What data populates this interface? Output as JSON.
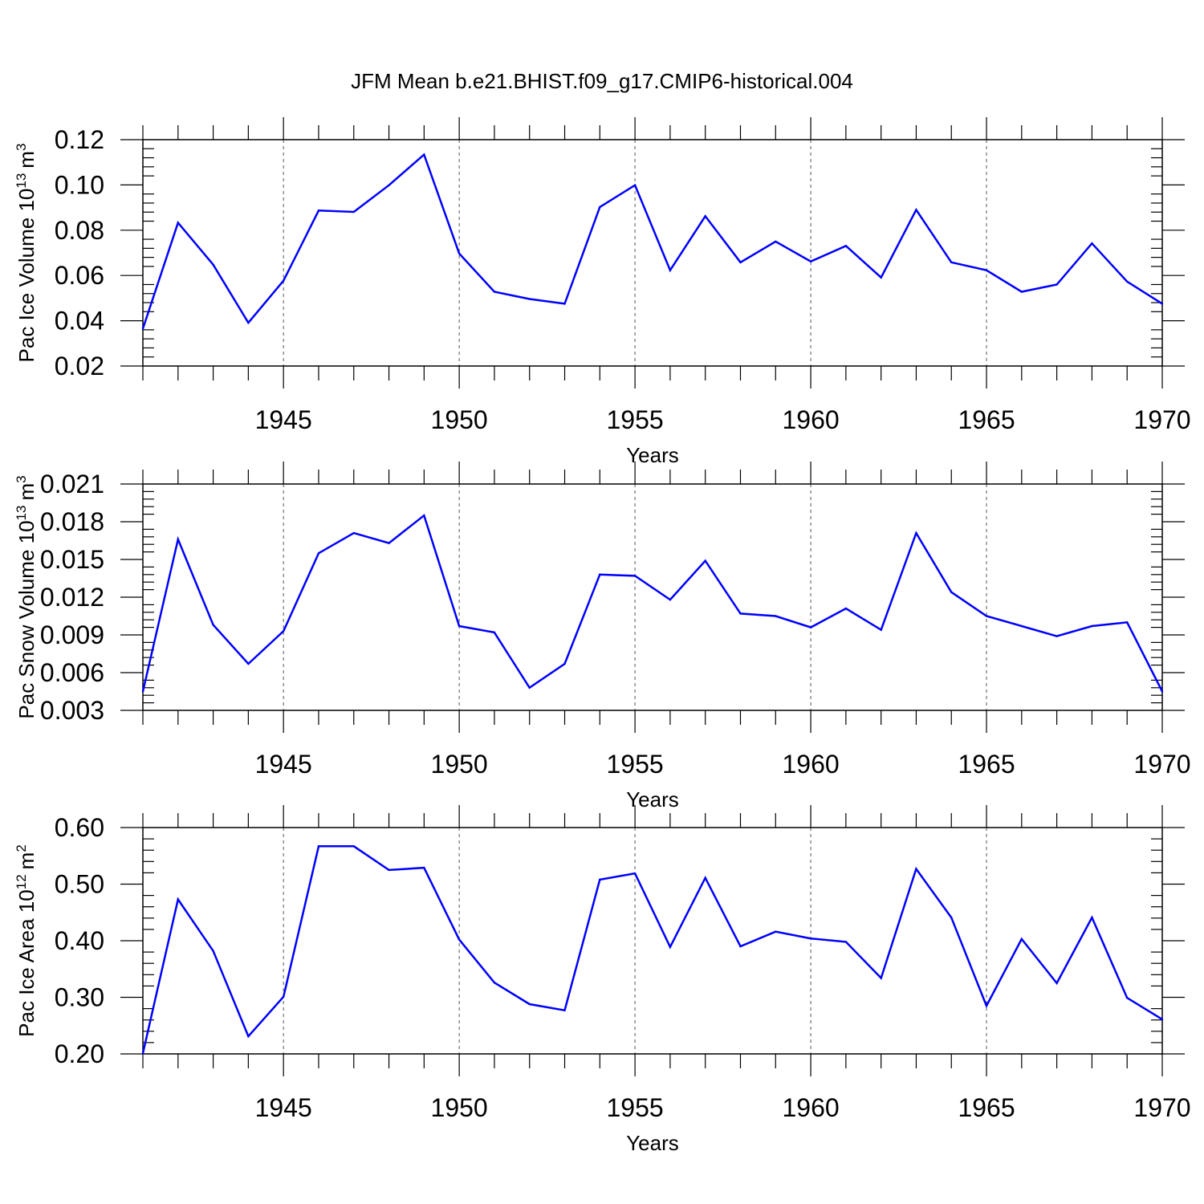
{
  "title": "JFM Mean b.e21.BHIST.f09_g17.CMIP6-historical.004",
  "chart_data": [
    {
      "type": "line",
      "ylabel": "Pac Ice Volume 10",
      "ylabel_exp": "13",
      "ylabel_unit": "m",
      "ylabel_unit_exp": "3",
      "xlabel": "Years",
      "xlim": [
        1941,
        1970
      ],
      "ylim": [
        0.02,
        0.12
      ],
      "grid": true,
      "xticks": [
        1945,
        1950,
        1955,
        1960,
        1965,
        1970
      ],
      "yticks": [
        "0.02",
        "0.04",
        "0.06",
        "0.08",
        "0.10",
        "0.12"
      ],
      "color": "#0000ff",
      "x": [
        1941,
        1942,
        1943,
        1944,
        1945,
        1946,
        1947,
        1948,
        1949,
        1950,
        1951,
        1952,
        1953,
        1954,
        1955,
        1956,
        1957,
        1958,
        1959,
        1960,
        1961,
        1962,
        1963,
        1964,
        1965,
        1966,
        1967,
        1968,
        1969,
        1970
      ],
      "y": [
        0.0365,
        0.0833,
        0.0648,
        0.0391,
        0.0577,
        0.0887,
        0.0881,
        0.0999,
        0.1134,
        0.0697,
        0.0528,
        0.0496,
        0.0475,
        0.0902,
        0.0999,
        0.0623,
        0.0862,
        0.0658,
        0.075,
        0.0662,
        0.0731,
        0.0591,
        0.089,
        0.0658,
        0.0623,
        0.0528,
        0.056,
        0.0742,
        0.0573,
        0.0475
      ]
    },
    {
      "type": "line",
      "ylabel": "Pac Snow Volume 10",
      "ylabel_exp": "13",
      "ylabel_unit": "m",
      "ylabel_unit_exp": "3",
      "xlabel": "Years",
      "xlim": [
        1941,
        1970
      ],
      "ylim": [
        0.003,
        0.021
      ],
      "grid": true,
      "xticks": [
        1945,
        1950,
        1955,
        1960,
        1965,
        1970
      ],
      "yticks": [
        "0.003",
        "0.006",
        "0.009",
        "0.012",
        "0.015",
        "0.018",
        "0.021"
      ],
      "color": "#0000ff",
      "x": [
        1941,
        1942,
        1943,
        1944,
        1945,
        1946,
        1947,
        1948,
        1949,
        1950,
        1951,
        1952,
        1953,
        1954,
        1955,
        1956,
        1957,
        1958,
        1959,
        1960,
        1961,
        1962,
        1963,
        1964,
        1965,
        1966,
        1967,
        1968,
        1969,
        1970
      ],
      "y": [
        0.0045,
        0.0166,
        0.0098,
        0.0067,
        0.0093,
        0.0155,
        0.0171,
        0.0163,
        0.0185,
        0.0097,
        0.0092,
        0.0048,
        0.0067,
        0.0138,
        0.0137,
        0.0118,
        0.0149,
        0.0107,
        0.0105,
        0.0096,
        0.0111,
        0.0094,
        0.0171,
        0.0124,
        0.0105,
        0.0097,
        0.0089,
        0.0097,
        0.01,
        0.0045
      ]
    },
    {
      "type": "line",
      "ylabel": "Pac Ice Area 10",
      "ylabel_exp": "12",
      "ylabel_unit": "m",
      "ylabel_unit_exp": "2",
      "xlabel": "Years",
      "xlim": [
        1941,
        1970
      ],
      "ylim": [
        0.2,
        0.6
      ],
      "grid": true,
      "xticks": [
        1945,
        1950,
        1955,
        1960,
        1965,
        1970
      ],
      "yticks": [
        "0.20",
        "0.30",
        "0.40",
        "0.50",
        "0.60"
      ],
      "color": "#0000ff",
      "x": [
        1941,
        1942,
        1943,
        1944,
        1945,
        1946,
        1947,
        1948,
        1949,
        1950,
        1951,
        1952,
        1953,
        1954,
        1955,
        1956,
        1957,
        1958,
        1959,
        1960,
        1961,
        1962,
        1963,
        1964,
        1965,
        1966,
        1967,
        1968,
        1969,
        1970
      ],
      "y": [
        0.201,
        0.473,
        0.382,
        0.231,
        0.301,
        0.567,
        0.567,
        0.525,
        0.529,
        0.402,
        0.326,
        0.288,
        0.277,
        0.508,
        0.519,
        0.389,
        0.511,
        0.39,
        0.416,
        0.404,
        0.398,
        0.334,
        0.527,
        0.441,
        0.285,
        0.403,
        0.325,
        0.441,
        0.299,
        0.261
      ]
    }
  ]
}
